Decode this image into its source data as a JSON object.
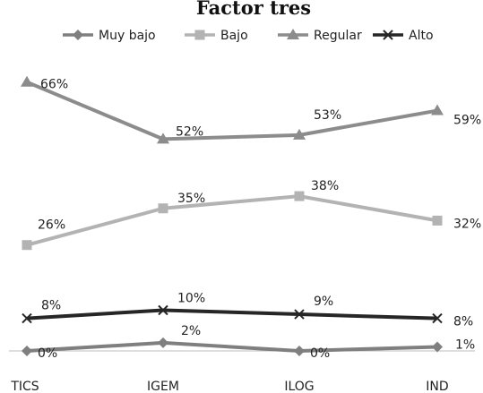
{
  "chart_data": {
    "type": "line",
    "title": "Factor tres",
    "categories": [
      "TICS",
      "IGEM",
      "ILOG",
      "IND"
    ],
    "ylim": [
      0,
      70
    ],
    "grid": false,
    "legend_position": "top",
    "series": [
      {
        "name": "Muy bajo",
        "values": [
          0,
          2,
          0,
          1
        ],
        "labels": [
          "0%",
          "2%",
          "0%",
          "1%"
        ],
        "color": "#7f7f7f",
        "marker": "diamond"
      },
      {
        "name": "Bajo",
        "values": [
          26,
          35,
          38,
          32
        ],
        "labels": [
          "26%",
          "35%",
          "38%",
          "32%"
        ],
        "color": "#b3b3b3",
        "marker": "square"
      },
      {
        "name": "Regular",
        "values": [
          66,
          52,
          53,
          59
        ],
        "labels": [
          "66%",
          "52%",
          "53%",
          "59%"
        ],
        "color": "#8c8c8c",
        "marker": "triangle"
      },
      {
        "name": "Alto",
        "values": [
          8,
          10,
          9,
          8
        ],
        "labels": [
          "8%",
          "10%",
          "9%",
          "8%"
        ],
        "color": "#262626",
        "marker": "x"
      }
    ]
  }
}
